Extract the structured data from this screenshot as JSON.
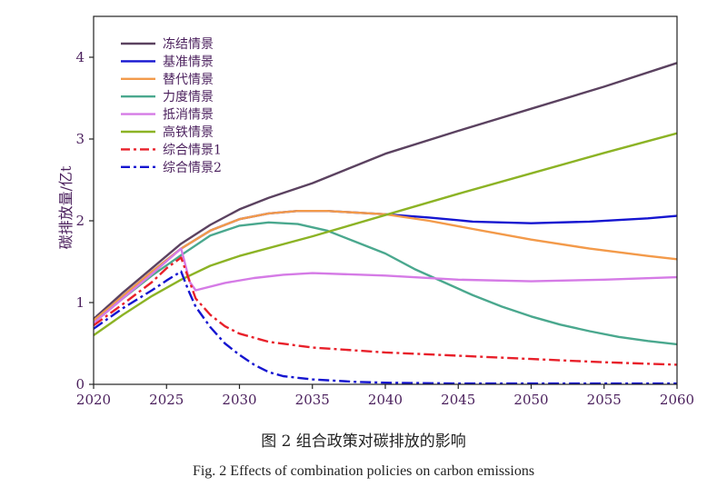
{
  "chart_data": {
    "type": "line",
    "title": "",
    "xlabel": "",
    "ylabel": "碳排放量/亿t",
    "xlim": [
      2020,
      2060
    ],
    "ylim": [
      0,
      4.5
    ],
    "xticks": [
      2020,
      2025,
      2030,
      2035,
      2040,
      2045,
      2050,
      2055,
      2060
    ],
    "yticks": [
      0,
      1,
      2,
      3,
      4
    ],
    "legend_position": "top-left",
    "series": [
      {
        "name": "冻结情景",
        "color": "#5b4260",
        "dash": "solid",
        "x": [
          2020,
          2022,
          2024,
          2026,
          2028,
          2030,
          2032,
          2035,
          2040,
          2045,
          2050,
          2055,
          2060
        ],
        "y": [
          0.8,
          1.12,
          1.42,
          1.72,
          1.95,
          2.14,
          2.28,
          2.46,
          2.82,
          3.1,
          3.37,
          3.64,
          3.93
        ]
      },
      {
        "name": "基准情景",
        "color": "#1515d0",
        "dash": "solid",
        "x": [
          2020,
          2022,
          2024,
          2026,
          2028,
          2030,
          2032,
          2034,
          2036,
          2040,
          2043,
          2046,
          2050,
          2054,
          2058,
          2060
        ],
        "y": [
          0.78,
          1.08,
          1.38,
          1.66,
          1.88,
          2.02,
          2.09,
          2.12,
          2.12,
          2.08,
          2.04,
          1.99,
          1.97,
          1.99,
          2.03,
          2.06
        ]
      },
      {
        "name": "替代情景",
        "color": "#f39a4a",
        "dash": "solid",
        "x": [
          2020,
          2022,
          2024,
          2026,
          2028,
          2030,
          2032,
          2034,
          2036,
          2040,
          2043,
          2046,
          2050,
          2054,
          2058,
          2060
        ],
        "y": [
          0.78,
          1.08,
          1.38,
          1.66,
          1.88,
          2.02,
          2.09,
          2.12,
          2.12,
          2.08,
          2.0,
          1.9,
          1.77,
          1.66,
          1.57,
          1.53
        ]
      },
      {
        "name": "力度情景",
        "color": "#4aa88e",
        "dash": "solid",
        "x": [
          2020,
          2022,
          2024,
          2026,
          2028,
          2030,
          2032,
          2034,
          2036,
          2038,
          2040,
          2042,
          2044,
          2046,
          2048,
          2050,
          2052,
          2054,
          2056,
          2058,
          2060
        ],
        "y": [
          0.75,
          1.05,
          1.33,
          1.58,
          1.82,
          1.94,
          1.98,
          1.96,
          1.88,
          1.74,
          1.6,
          1.41,
          1.25,
          1.09,
          0.95,
          0.83,
          0.73,
          0.65,
          0.58,
          0.53,
          0.49
        ]
      },
      {
        "name": "抵消情景",
        "color": "#d57be6",
        "dash": "solid",
        "x": [
          2020,
          2022,
          2024,
          2026,
          2026.6,
          2027,
          2029,
          2031,
          2033,
          2035,
          2040,
          2045,
          2050,
          2055,
          2060
        ],
        "y": [
          0.75,
          1.05,
          1.35,
          1.66,
          1.25,
          1.15,
          1.24,
          1.3,
          1.34,
          1.36,
          1.33,
          1.28,
          1.26,
          1.28,
          1.31
        ]
      },
      {
        "name": "高铁情景",
        "color": "#8cb325",
        "dash": "solid",
        "x": [
          2020,
          2022,
          2024,
          2026,
          2028,
          2030,
          2035,
          2040,
          2045,
          2050,
          2055,
          2060
        ],
        "y": [
          0.6,
          0.85,
          1.08,
          1.28,
          1.45,
          1.57,
          1.81,
          2.07,
          2.33,
          2.58,
          2.83,
          3.07
        ]
      },
      {
        "name": "综合情景1",
        "color": "#e8202a",
        "dash": "dashdot",
        "x": [
          2020,
          2022,
          2024,
          2025,
          2026,
          2026.6,
          2027,
          2028,
          2029,
          2030,
          2032,
          2035,
          2040,
          2045,
          2050,
          2055,
          2060
        ],
        "y": [
          0.72,
          0.98,
          1.25,
          1.42,
          1.55,
          1.25,
          1.05,
          0.85,
          0.71,
          0.62,
          0.52,
          0.45,
          0.39,
          0.35,
          0.31,
          0.27,
          0.24
        ]
      },
      {
        "name": "综合情景2",
        "color": "#1515d0",
        "dash": "dashdot",
        "x": [
          2020,
          2022,
          2024,
          2025,
          2026,
          2026.5,
          2027,
          2028,
          2029,
          2030,
          2031,
          2032,
          2033,
          2035,
          2038,
          2040,
          2045,
          2050,
          2055,
          2060
        ],
        "y": [
          0.68,
          0.93,
          1.15,
          1.27,
          1.38,
          1.15,
          0.95,
          0.7,
          0.5,
          0.36,
          0.24,
          0.15,
          0.1,
          0.06,
          0.03,
          0.02,
          0.01,
          0.01,
          0.01,
          0.01
        ]
      }
    ]
  },
  "caption": {
    "chinese": "图 2  组合政策对碳排放的影响",
    "english": "Fig. 2 Effects of combination policies on carbon emissions"
  }
}
